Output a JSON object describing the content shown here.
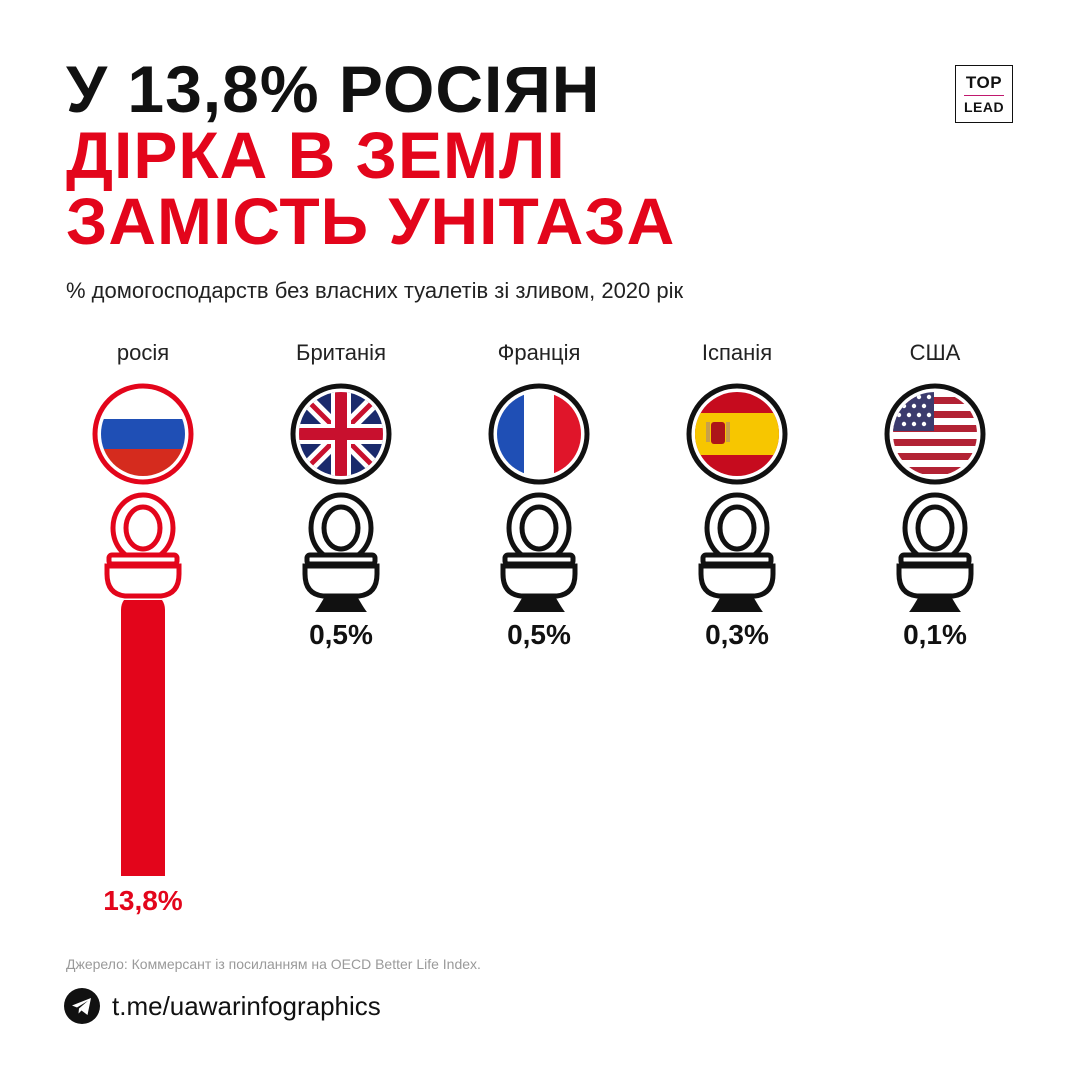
{
  "title": {
    "line1": "У 13,8% РОСІЯН",
    "line2": "ДІРКА В ЗЕМЛІ",
    "line3": "ЗАМІСТЬ УНІТАЗА"
  },
  "subtitle": "% домогосподарств без власних туалетів зі зливом, 2020 рік",
  "logo": {
    "top": "TOP",
    "bottom": "LEAD"
  },
  "colors": {
    "accent": "#e3051b",
    "ink": "#111111",
    "muted": "#9a9a9a"
  },
  "chart_data": {
    "type": "bar",
    "title": "% домогосподарств без власних туалетів зі зливом, 2020 рік",
    "categories": [
      "росія",
      "Британія",
      "Франція",
      "Іспанія",
      "США"
    ],
    "values": [
      13.8,
      0.5,
      0.5,
      0.3,
      0.1
    ],
    "value_labels": [
      "13,8%",
      "0,5%",
      "0,5%",
      "0,3%",
      "0,1%"
    ],
    "highlight_index": 0,
    "flags": [
      "flag-russia",
      "flag-uk",
      "flag-france",
      "flag-spain",
      "flag-usa"
    ],
    "ylim": [
      0,
      13.8
    ],
    "xlabel": "",
    "ylabel": ""
  },
  "source": "Джерело: Коммерсант із посиланням на OECD Better Life Index.",
  "footer": {
    "icon": "telegram-icon",
    "link": "t.me/uawarinfographics"
  }
}
